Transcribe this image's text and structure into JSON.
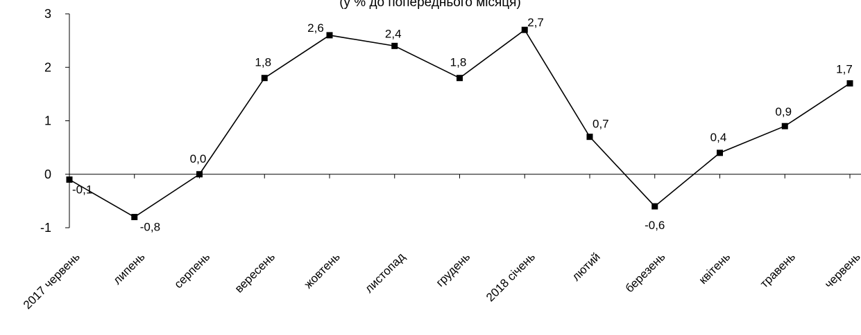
{
  "chart_data": {
    "type": "line",
    "title": "(у % до попереднього місяця)",
    "xlabel": "",
    "ylabel": "",
    "categories": [
      "2017 червень",
      "липень",
      "серпень",
      "вересень",
      "жовтень",
      "листопад",
      "грудень",
      "2018 січень",
      "лютий",
      "березень",
      "квітень",
      "травень",
      "червень"
    ],
    "series": [
      {
        "values": [
          -0.1,
          -0.8,
          0.0,
          1.8,
          2.6,
          2.4,
          1.8,
          2.7,
          0.7,
          -0.6,
          0.4,
          0.9,
          1.7
        ],
        "data_labels": [
          "-0,1",
          "-0,8",
          "0,0",
          "1,8",
          "2,6",
          "2,4",
          "1,8",
          "2,7",
          "0,7",
          "-0,6",
          "0,4",
          "0,9",
          "1,7"
        ],
        "color": "#000000",
        "marker": "square"
      }
    ],
    "ylim": [
      -1,
      3
    ],
    "yticks": [
      -1,
      0,
      1,
      2,
      3
    ],
    "ytick_labels": [
      "-1",
      "0",
      "1",
      "2",
      "3"
    ],
    "grid": false,
    "legend": "none"
  }
}
